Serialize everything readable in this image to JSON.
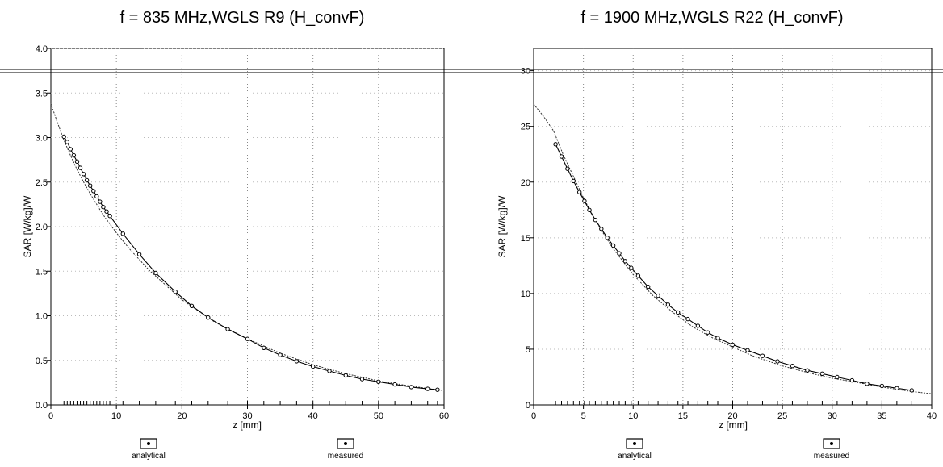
{
  "chart_data": [
    {
      "type": "line",
      "title": "f = 835 MHz,WGLS R9 (H_convF)",
      "xlabel": "z [mm]",
      "ylabel": "SAR [W/kg]/W",
      "xlim": [
        0,
        60
      ],
      "ylim": [
        0,
        4.0
      ],
      "xticks": [
        0,
        10,
        20,
        30,
        40,
        50,
        60
      ],
      "yticks": [
        0.0,
        0.5,
        1.0,
        1.5,
        2.0,
        2.5,
        3.0,
        3.5,
        4.0
      ],
      "ytick_labels": [
        "0.0",
        "0.5",
        "1.0",
        "1.5",
        "2.0",
        "2.5",
        "3.0",
        "3.5",
        "4.0"
      ],
      "grid": "dotted",
      "legend": [
        "analytical",
        "measured"
      ],
      "series": [
        {
          "name": "analytical",
          "x": [
            0,
            1,
            2,
            3,
            4,
            5,
            6,
            8,
            10,
            12,
            15,
            20,
            25,
            30,
            35,
            40,
            45,
            50,
            55,
            60
          ],
          "values": [
            3.38,
            3.17,
            2.97,
            2.8,
            2.64,
            2.5,
            2.37,
            2.13,
            1.93,
            1.75,
            1.51,
            1.18,
            0.93,
            0.74,
            0.58,
            0.45,
            0.35,
            0.27,
            0.21,
            0.16
          ]
        },
        {
          "name": "measured",
          "x": [
            2,
            2.5,
            3,
            3.5,
            4,
            4.5,
            5,
            5.5,
            6,
            6.5,
            7,
            7.5,
            8,
            8.5,
            9,
            11,
            13.5,
            16,
            19,
            21.5,
            24,
            27,
            30,
            32.5,
            35,
            37.5,
            40,
            42.5,
            45,
            47.5,
            50,
            52.5,
            55,
            57.5,
            59
          ],
          "values": [
            3.01,
            2.95,
            2.87,
            2.8,
            2.73,
            2.66,
            2.59,
            2.52,
            2.46,
            2.4,
            2.34,
            2.28,
            2.22,
            2.17,
            2.12,
            1.92,
            1.69,
            1.48,
            1.27,
            1.11,
            0.98,
            0.85,
            0.74,
            0.64,
            0.56,
            0.49,
            0.43,
            0.38,
            0.33,
            0.29,
            0.26,
            0.23,
            0.2,
            0.18,
            0.17
          ]
        }
      ]
    },
    {
      "type": "line",
      "title": "f = 1900 MHz,WGLS R22 (H_convF)",
      "xlabel": "z [mm]",
      "ylabel": "SAR [W/kg]/W",
      "xlim": [
        0,
        40
      ],
      "ylim": [
        0,
        32
      ],
      "xticks": [
        0,
        5,
        10,
        15,
        20,
        25,
        30,
        35,
        40
      ],
      "yticks": [
        0,
        5,
        10,
        15,
        20,
        25,
        30
      ],
      "ytick_labels": [
        "0",
        "5",
        "10",
        "15",
        "20",
        "25",
        "30"
      ],
      "grid": "dotted",
      "legend": [
        "analytical",
        "measured"
      ],
      "series": [
        {
          "name": "analytical",
          "x": [
            0,
            1,
            2,
            3,
            4,
            5,
            6,
            7,
            8,
            10,
            12,
            14,
            16,
            18,
            20,
            22,
            25,
            28,
            30,
            32,
            35,
            38,
            40
          ],
          "values": [
            27.0,
            25.9,
            24.6,
            22.4,
            20.5,
            18.6,
            16.9,
            15.4,
            14.0,
            11.7,
            9.8,
            8.3,
            7.0,
            6.0,
            5.2,
            4.4,
            3.5,
            2.8,
            2.4,
            2.1,
            1.6,
            1.2,
            1.0
          ]
        },
        {
          "name": "measured",
          "x": [
            2.2,
            2.8,
            3.4,
            4.0,
            4.6,
            5.1,
            5.6,
            6.2,
            6.8,
            7.4,
            8.0,
            8.6,
            9.2,
            9.8,
            10.5,
            11.5,
            12.5,
            13.5,
            14.5,
            15.5,
            16.5,
            17.5,
            18.5,
            20.0,
            21.5,
            23.0,
            24.5,
            26.0,
            27.5,
            29.0,
            30.5,
            32.0,
            33.5,
            35.0,
            36.5,
            38.0
          ],
          "values": [
            23.4,
            22.3,
            21.2,
            20.1,
            19.1,
            18.3,
            17.5,
            16.6,
            15.8,
            15.0,
            14.3,
            13.6,
            12.9,
            12.3,
            11.6,
            10.6,
            9.8,
            9.0,
            8.3,
            7.7,
            7.1,
            6.5,
            6.0,
            5.4,
            4.9,
            4.4,
            3.9,
            3.5,
            3.1,
            2.8,
            2.5,
            2.2,
            1.9,
            1.7,
            1.5,
            1.3
          ]
        }
      ]
    }
  ]
}
